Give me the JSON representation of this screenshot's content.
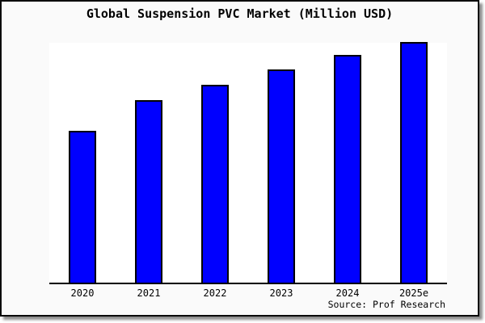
{
  "title": "Global Suspension PVC Market (Million USD)",
  "source": "Source: Prof Research",
  "colors": {
    "bar_fill": "#0000ff",
    "bar_border": "#000000",
    "figure_background": "#fafafa",
    "plot_background": "#ffffff",
    "axis_line": "#000000",
    "card_border": "#0a0a0a",
    "shadow": "#999999",
    "text": "#000000"
  },
  "chart_data": {
    "type": "bar",
    "title": "Global Suspension PVC Market (Million USD)",
    "categories": [
      "2020",
      "2021",
      "2022",
      "2023",
      "2024",
      "2025e"
    ],
    "values": [
      188,
      226,
      245,
      264,
      282,
      298
    ],
    "value_note": "No y-axis ticks or value labels are shown in the image; values are relative bar heights (pixels) on an unlabeled Million USD scale.",
    "xlabel": "",
    "ylabel": "Million USD",
    "ylim": [
      0,
      300
    ],
    "grid": false,
    "legend": null,
    "x_axis_line": true,
    "y_axis_line": false,
    "source": "Source: Prof Research"
  }
}
